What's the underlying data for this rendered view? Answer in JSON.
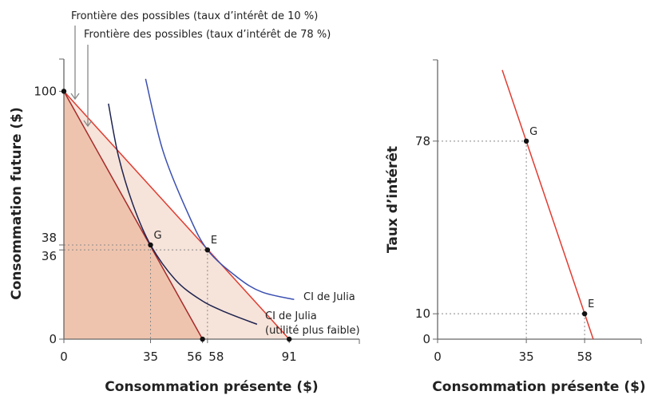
{
  "chart_data": [
    {
      "type": "line",
      "xlabel": "Consommation présente ($)",
      "ylabel": "Consommation future ($)",
      "xlim": [
        0,
        119
      ],
      "ylim": [
        0,
        113
      ],
      "x_ticks": [
        "0",
        "35",
        "56",
        "58",
        "91"
      ],
      "x_tick_values": [
        0,
        35,
        56,
        58,
        91
      ],
      "y_ticks": [
        "0",
        "36",
        "38",
        "100"
      ],
      "y_tick_values": [
        0,
        36,
        38,
        100
      ],
      "grid": false,
      "series": [
        {
          "name": "Frontière des possibles (taux d’intérêt de 10 %)",
          "points": [
            [
              0,
              100
            ],
            [
              91,
              0
            ]
          ],
          "color": "#e03c31"
        },
        {
          "name": "Frontière des possibles (taux d’intérêt de 78 %)",
          "points": [
            [
              0,
              100
            ],
            [
              56,
              0
            ]
          ],
          "color": "#a52a2a"
        },
        {
          "name": "CI de Julia",
          "points": [
            [
              33,
              105
            ],
            [
              40,
              76
            ],
            [
              50,
              51
            ],
            [
              58,
              36
            ],
            [
              70,
              25
            ],
            [
              80,
              19
            ],
            [
              93,
              16
            ]
          ],
          "color": "#3a4fb0"
        },
        {
          "name": "CI de Julia (utilité plus faible)",
          "points": [
            [
              18,
              95
            ],
            [
              22,
              74
            ],
            [
              28,
              54
            ],
            [
              35,
              38
            ],
            [
              45,
              24
            ],
            [
              55,
              16
            ],
            [
              65,
              11
            ],
            [
              78,
              6
            ]
          ],
          "color": "#1f2350"
        }
      ],
      "labels": {
        "ci_high": "CI de Julia",
        "ci_low_1": "CI de Julia",
        "ci_low_2": "(utilité plus faible)"
      },
      "points": [
        {
          "label": "G",
          "x": 35,
          "y": 38
        },
        {
          "label": "E",
          "x": 58,
          "y": 36
        },
        {
          "label": "",
          "x": 0,
          "y": 100
        },
        {
          "label": "",
          "x": 56,
          "y": 0
        },
        {
          "label": "",
          "x": 91,
          "y": 0
        }
      ],
      "fill_colors": {
        "light": "#f6e3d9",
        "dark": "#efc4ae"
      }
    },
    {
      "type": "line",
      "xlabel": "Consommation présente ($)",
      "ylabel": "Taux d’intérêt",
      "xlim": [
        0,
        80
      ],
      "ylim": [
        0,
        110
      ],
      "x_ticks": [
        "0",
        "35",
        "58"
      ],
      "x_tick_values": [
        0,
        35,
        58
      ],
      "y_ticks": [
        "0",
        "10",
        "78"
      ],
      "y_tick_values": [
        0,
        10,
        78
      ],
      "grid": false,
      "series": [
        {
          "points": [
            [
              25.5,
              106
            ],
            [
              61.4,
              0
            ]
          ],
          "color": "#e03c31"
        }
      ],
      "points": [
        {
          "label": "G",
          "x": 35,
          "y": 78
        },
        {
          "label": "E",
          "x": 58,
          "y": 10
        }
      ]
    }
  ]
}
